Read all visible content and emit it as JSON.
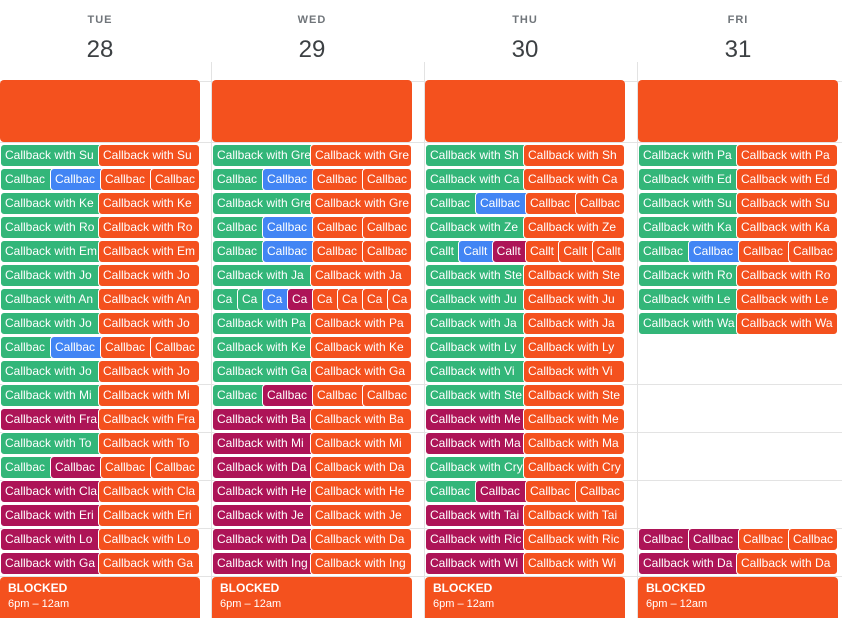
{
  "days": [
    {
      "dow": "TUE",
      "num": "28"
    },
    {
      "dow": "WED",
      "num": "29"
    },
    {
      "dow": "THU",
      "num": "30"
    },
    {
      "dow": "FRI",
      "num": "31"
    }
  ],
  "blocked": {
    "title": "BLOCKED",
    "time": "6pm – 12am"
  },
  "colors": {
    "green": "#33b679",
    "orange": "#f4511e",
    "blue": "#4285f4",
    "purple": "#ad1457"
  },
  "rows": [
    [
      [
        {
          "t": "Callback with Su",
          "c": "g"
        },
        {
          "t": "Callback with Su",
          "c": "o"
        }
      ],
      [
        {
          "t": "Callback with Gre",
          "c": "g"
        },
        {
          "t": "Callback with Gre",
          "c": "o"
        }
      ],
      [
        {
          "t": "Callback with Sh",
          "c": "g"
        },
        {
          "t": "Callback with Sh",
          "c": "o"
        }
      ],
      [
        {
          "t": "Callback with Pa",
          "c": "g"
        },
        {
          "t": "Callback with Pa",
          "c": "o"
        }
      ]
    ],
    [
      [
        {
          "t": "Callbac",
          "c": "g"
        },
        {
          "t": "Callbac",
          "c": "b"
        },
        {
          "t": "Callbac",
          "c": "o"
        },
        {
          "t": "Callbac",
          "c": "o"
        }
      ],
      [
        {
          "t": "Callbac",
          "c": "g"
        },
        {
          "t": "Callbac",
          "c": "b"
        },
        {
          "t": "Callbac",
          "c": "o"
        },
        {
          "t": "Callbac",
          "c": "o"
        }
      ],
      [
        {
          "t": "Callback with Ca",
          "c": "g"
        },
        {
          "t": "Callback with Ca",
          "c": "o"
        }
      ],
      [
        {
          "t": "Callback with Ed",
          "c": "g"
        },
        {
          "t": "Callback with Ed",
          "c": "o"
        }
      ]
    ],
    [
      [
        {
          "t": "Callback with Ke",
          "c": "g"
        },
        {
          "t": "Callback with Ke",
          "c": "o"
        }
      ],
      [
        {
          "t": "Callback with Gre",
          "c": "g"
        },
        {
          "t": "Callback with Gre",
          "c": "o"
        }
      ],
      [
        {
          "t": "Callbac",
          "c": "g"
        },
        {
          "t": "Callbac",
          "c": "b"
        },
        {
          "t": "Callbac",
          "c": "o"
        },
        {
          "t": "Callbac",
          "c": "o"
        }
      ],
      [
        {
          "t": "Callback with Su",
          "c": "g"
        },
        {
          "t": "Callback with Su",
          "c": "o"
        }
      ]
    ],
    [
      [
        {
          "t": "Callback with Ro",
          "c": "g"
        },
        {
          "t": "Callback with Ro",
          "c": "o"
        }
      ],
      [
        {
          "t": "Callbac",
          "c": "g"
        },
        {
          "t": "Callbac",
          "c": "b"
        },
        {
          "t": "Callbac",
          "c": "o"
        },
        {
          "t": "Callbac",
          "c": "o"
        }
      ],
      [
        {
          "t": "Callback with Ze",
          "c": "g"
        },
        {
          "t": "Callback with Ze",
          "c": "o"
        }
      ],
      [
        {
          "t": "Callback with Ka",
          "c": "g"
        },
        {
          "t": "Callback with Ka",
          "c": "o"
        }
      ]
    ],
    [
      [
        {
          "t": "Callback with Em",
          "c": "g"
        },
        {
          "t": "Callback with Em",
          "c": "o"
        }
      ],
      [
        {
          "t": "Callbac",
          "c": "g"
        },
        {
          "t": "Callbac",
          "c": "b"
        },
        {
          "t": "Callbac",
          "c": "o"
        },
        {
          "t": "Callbac",
          "c": "o"
        }
      ],
      [
        {
          "t": "Callt",
          "c": "g"
        },
        {
          "t": "Callt",
          "c": "b"
        },
        {
          "t": "Callt",
          "c": "p"
        },
        {
          "t": "Callt",
          "c": "o"
        },
        {
          "t": "Callt",
          "c": "o"
        },
        {
          "t": "Callt",
          "c": "o"
        }
      ],
      [
        {
          "t": "Callbac",
          "c": "g"
        },
        {
          "t": "Callbac",
          "c": "b"
        },
        {
          "t": "Callbac",
          "c": "o"
        },
        {
          "t": "Callbac",
          "c": "o"
        }
      ]
    ],
    [
      [
        {
          "t": "Callback with Jo",
          "c": "g"
        },
        {
          "t": "Callback with Jo",
          "c": "o"
        }
      ],
      [
        {
          "t": "Callback with Ja",
          "c": "g"
        },
        {
          "t": "Callback with Ja",
          "c": "o"
        }
      ],
      [
        {
          "t": "Callback with Ste",
          "c": "g"
        },
        {
          "t": "Callback with Ste",
          "c": "o"
        }
      ],
      [
        {
          "t": "Callback with Ro",
          "c": "g"
        },
        {
          "t": "Callback with Ro",
          "c": "o"
        }
      ]
    ],
    [
      [
        {
          "t": "Callback with An",
          "c": "g"
        },
        {
          "t": "Callback with An",
          "c": "o"
        }
      ],
      [
        {
          "t": "Ca",
          "c": "g"
        },
        {
          "t": "Ca",
          "c": "g"
        },
        {
          "t": "Ca",
          "c": "b"
        },
        {
          "t": "Ca",
          "c": "p"
        },
        {
          "t": "Ca",
          "c": "o"
        },
        {
          "t": "Ca",
          "c": "o"
        },
        {
          "t": "Ca",
          "c": "o"
        },
        {
          "t": "Ca",
          "c": "o"
        }
      ],
      [
        {
          "t": "Callback with Ju",
          "c": "g"
        },
        {
          "t": "Callback with Ju",
          "c": "o"
        }
      ],
      [
        {
          "t": "Callback with Le",
          "c": "g"
        },
        {
          "t": "Callback with Le",
          "c": "o"
        }
      ]
    ],
    [
      [
        {
          "t": "Callback with Jo",
          "c": "g"
        },
        {
          "t": "Callback with Jo",
          "c": "o"
        }
      ],
      [
        {
          "t": "Callback with Pa",
          "c": "g"
        },
        {
          "t": "Callback with Pa",
          "c": "o"
        }
      ],
      [
        {
          "t": "Callback with Ja",
          "c": "g"
        },
        {
          "t": "Callback with Ja",
          "c": "o"
        }
      ],
      [
        {
          "t": "Callback with Wa",
          "c": "g"
        },
        {
          "t": "Callback with Wa",
          "c": "o"
        }
      ]
    ],
    [
      [
        {
          "t": "Callbac",
          "c": "g"
        },
        {
          "t": "Callbac",
          "c": "b"
        },
        {
          "t": "Callbac",
          "c": "o"
        },
        {
          "t": "Callbac",
          "c": "o"
        }
      ],
      [
        {
          "t": "Callback with Ke",
          "c": "g"
        },
        {
          "t": "Callback with Ke",
          "c": "o"
        }
      ],
      [
        {
          "t": "Callback with Ly",
          "c": "g"
        },
        {
          "t": "Callback with Ly",
          "c": "o"
        }
      ],
      []
    ],
    [
      [
        {
          "t": "Callback with Jo",
          "c": "g"
        },
        {
          "t": "Callback with Jo",
          "c": "o"
        }
      ],
      [
        {
          "t": "Callback with Ga",
          "c": "g"
        },
        {
          "t": "Callback with Ga",
          "c": "o"
        }
      ],
      [
        {
          "t": "Callback with Vi",
          "c": "g"
        },
        {
          "t": "Callback with Vi",
          "c": "o"
        }
      ],
      []
    ],
    [
      [
        {
          "t": "Callback with Mi",
          "c": "g"
        },
        {
          "t": "Callback with Mi",
          "c": "o"
        }
      ],
      [
        {
          "t": "Callbac",
          "c": "g"
        },
        {
          "t": "Callbac",
          "c": "p"
        },
        {
          "t": "Callbac",
          "c": "o"
        },
        {
          "t": "Callbac",
          "c": "o"
        }
      ],
      [
        {
          "t": "Callback with Ste",
          "c": "g"
        },
        {
          "t": "Callback with Ste",
          "c": "o"
        }
      ],
      []
    ],
    [
      [
        {
          "t": "Callback with Fra",
          "c": "p"
        },
        {
          "t": "Callback with Fra",
          "c": "o"
        }
      ],
      [
        {
          "t": "Callback with Ba",
          "c": "p"
        },
        {
          "t": "Callback with Ba",
          "c": "o"
        }
      ],
      [
        {
          "t": "Callback with Me",
          "c": "p"
        },
        {
          "t": "Callback with Me",
          "c": "o"
        }
      ],
      []
    ],
    [
      [
        {
          "t": "Callback with To",
          "c": "g"
        },
        {
          "t": "Callback with To",
          "c": "o"
        }
      ],
      [
        {
          "t": "Callback with Mi",
          "c": "p"
        },
        {
          "t": "Callback with Mi",
          "c": "o"
        }
      ],
      [
        {
          "t": "Callback with Ma",
          "c": "p"
        },
        {
          "t": "Callback with Ma",
          "c": "o"
        }
      ],
      []
    ],
    [
      [
        {
          "t": "Callbac",
          "c": "g"
        },
        {
          "t": "Callbac",
          "c": "p"
        },
        {
          "t": "Callbac",
          "c": "o"
        },
        {
          "t": "Callbac",
          "c": "o"
        }
      ],
      [
        {
          "t": "Callback with Da",
          "c": "p"
        },
        {
          "t": "Callback with Da",
          "c": "o"
        }
      ],
      [
        {
          "t": "Callback with Cry",
          "c": "g"
        },
        {
          "t": "Callback with Cry",
          "c": "o"
        }
      ],
      []
    ],
    [
      [
        {
          "t": "Callback with Cla",
          "c": "p"
        },
        {
          "t": "Callback with Cla",
          "c": "o"
        }
      ],
      [
        {
          "t": "Callback with He",
          "c": "p"
        },
        {
          "t": "Callback with He",
          "c": "o"
        }
      ],
      [
        {
          "t": "Callbac",
          "c": "g"
        },
        {
          "t": "Callbac",
          "c": "p"
        },
        {
          "t": "Callbac",
          "c": "o"
        },
        {
          "t": "Callbac",
          "c": "o"
        }
      ],
      []
    ],
    [
      [
        {
          "t": "Callback with Eri",
          "c": "p"
        },
        {
          "t": "Callback with Eri",
          "c": "o"
        }
      ],
      [
        {
          "t": "Callback with Je",
          "c": "p"
        },
        {
          "t": "Callback with Je",
          "c": "o"
        }
      ],
      [
        {
          "t": "Callback with Tai",
          "c": "p"
        },
        {
          "t": "Callback with Tai",
          "c": "o"
        }
      ],
      []
    ],
    [
      [
        {
          "t": "Callback with Lo",
          "c": "p"
        },
        {
          "t": "Callback with Lo",
          "c": "o"
        }
      ],
      [
        {
          "t": "Callback with Da",
          "c": "p"
        },
        {
          "t": "Callback with Da",
          "c": "o"
        }
      ],
      [
        {
          "t": "Callback with Ric",
          "c": "p"
        },
        {
          "t": "Callback with Ric",
          "c": "o"
        }
      ],
      [
        {
          "t": "Callbac",
          "c": "p"
        },
        {
          "t": "Callbac",
          "c": "p"
        },
        {
          "t": "Callbac",
          "c": "o"
        },
        {
          "t": "Callbac",
          "c": "o"
        }
      ]
    ],
    [
      [
        {
          "t": "Callback with Ga",
          "c": "p"
        },
        {
          "t": "Callback with Ga",
          "c": "o"
        }
      ],
      [
        {
          "t": "Callback with Ing",
          "c": "p"
        },
        {
          "t": "Callback with Ing",
          "c": "o"
        }
      ],
      [
        {
          "t": "Callback with Wi",
          "c": "p"
        },
        {
          "t": "Callback with Wi",
          "c": "o"
        }
      ],
      [
        {
          "t": "Callback with Da",
          "c": "p"
        },
        {
          "t": "Callback with Da",
          "c": "o"
        }
      ]
    ]
  ]
}
